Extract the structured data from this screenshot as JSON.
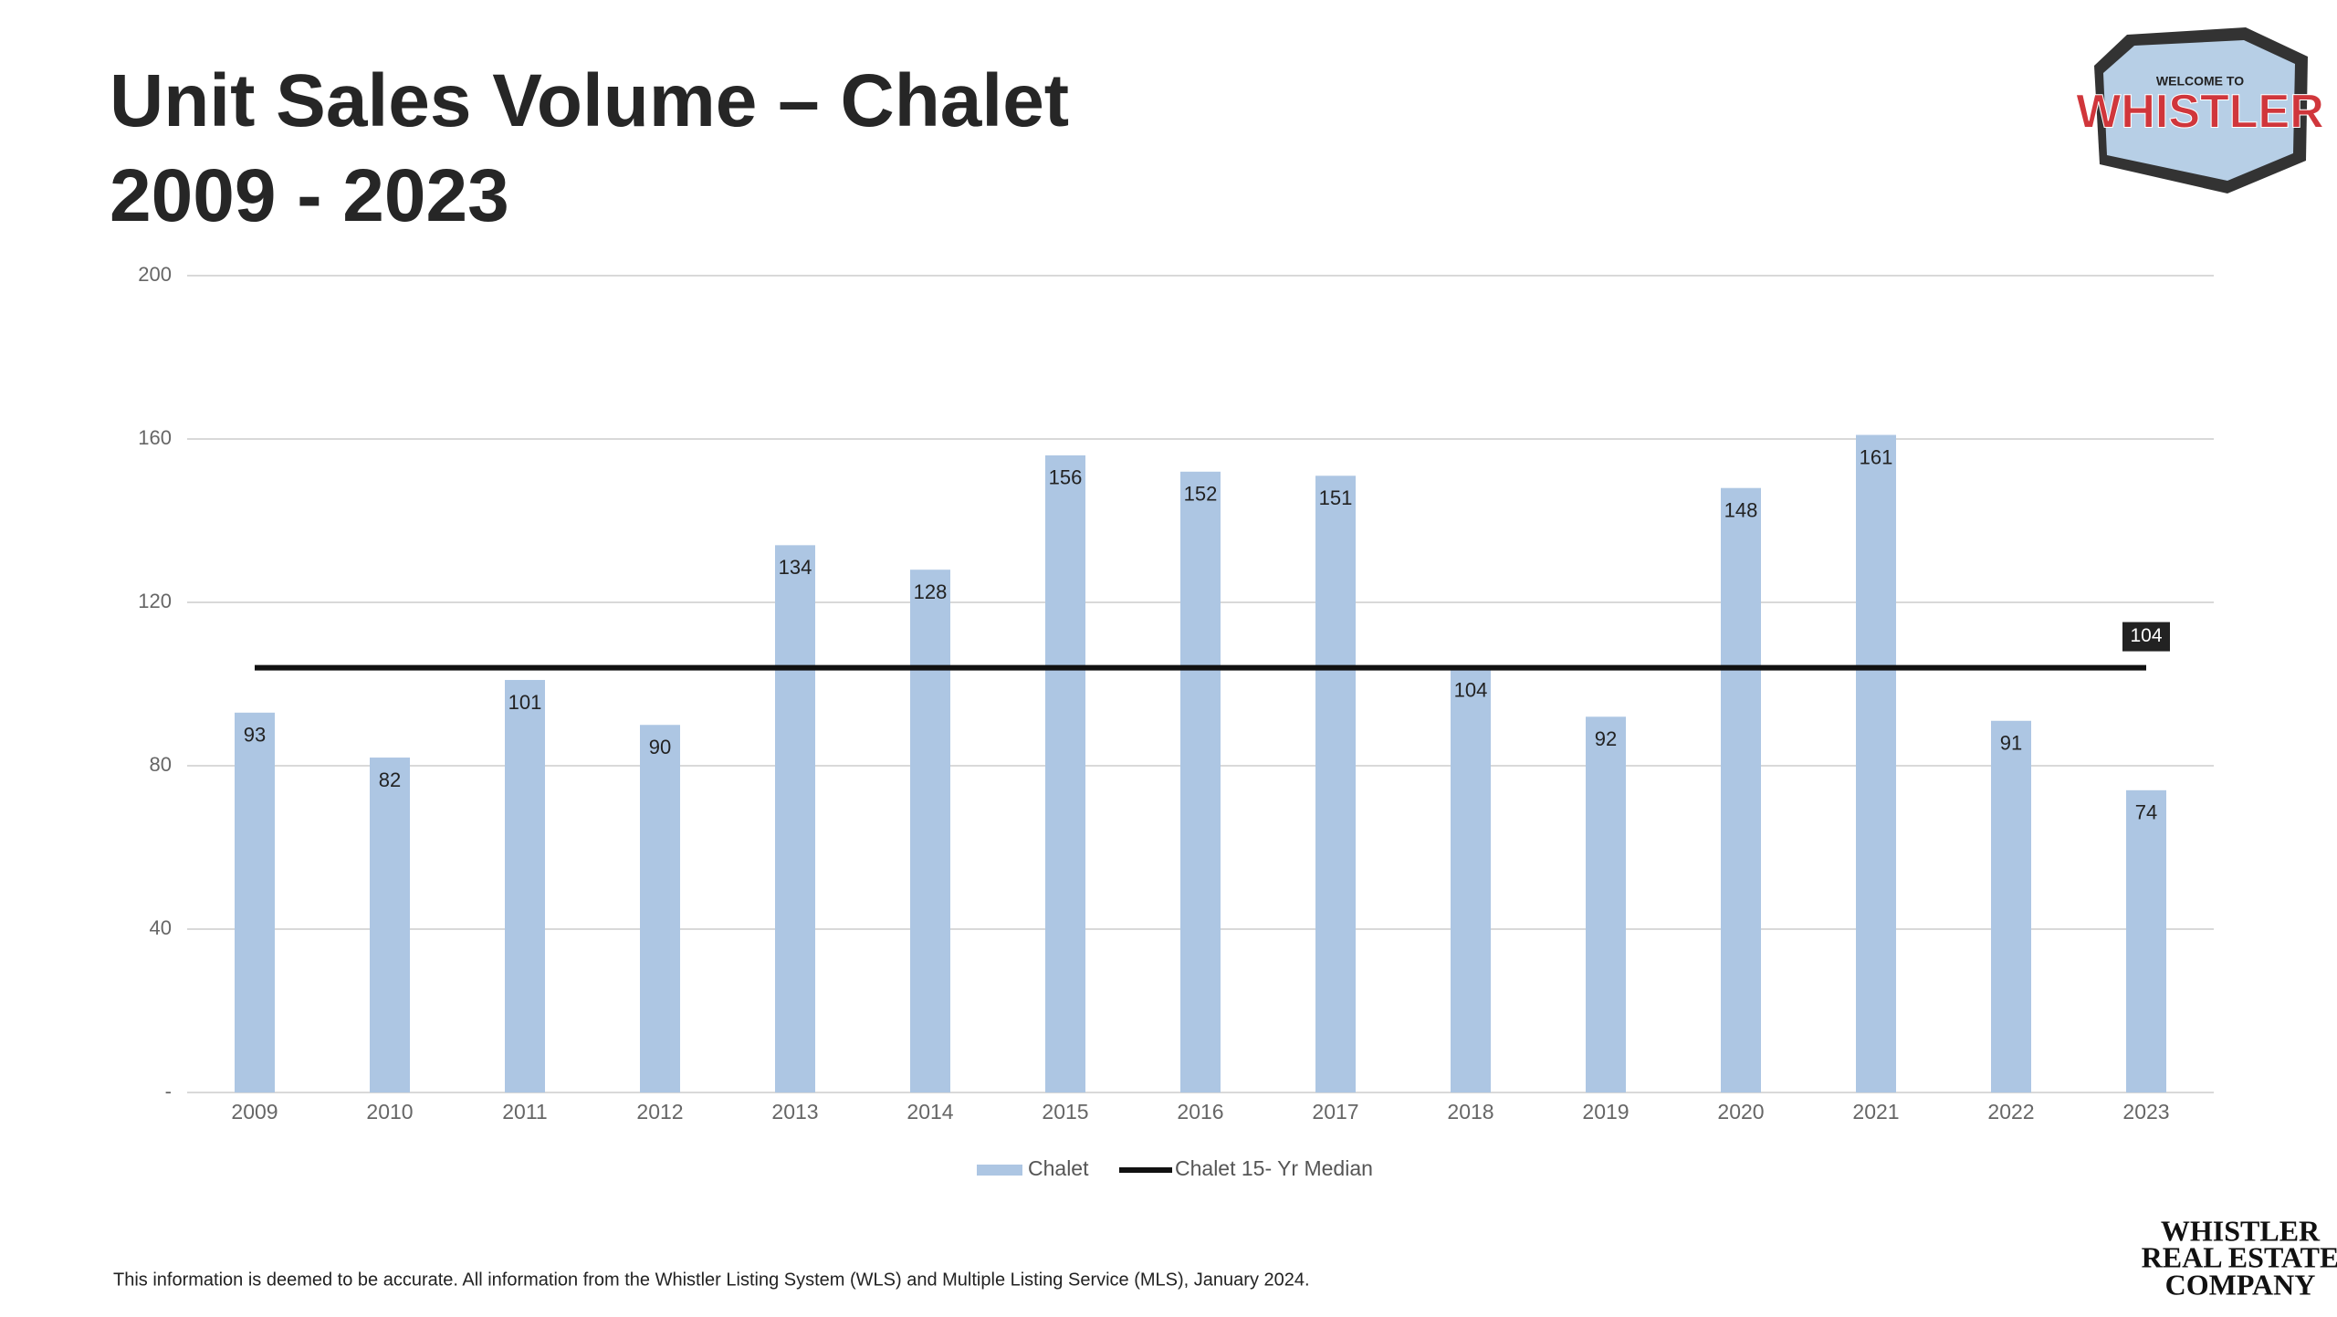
{
  "chart_data": {
    "type": "bar",
    "title": "Unit Sales Volume – Chalet",
    "subtitle": "2009 - 2023",
    "categories": [
      "2009",
      "2010",
      "2011",
      "2012",
      "2013",
      "2014",
      "2015",
      "2016",
      "2017",
      "2018",
      "2019",
      "2020",
      "2021",
      "2022",
      "2023"
    ],
    "series": [
      {
        "name": "Chalet",
        "color": "#adc6e3",
        "values": [
          93,
          82,
          101,
          90,
          134,
          128,
          156,
          152,
          151,
          104,
          92,
          148,
          161,
          91,
          74
        ]
      }
    ],
    "reference_line": {
      "name": "Chalet 15- Yr Median",
      "value": 104,
      "color": "#111111"
    },
    "ylim": [
      0,
      200
    ],
    "yticks": [
      {
        "value": 0,
        "label": "-"
      },
      40,
      80,
      120,
      160,
      200
    ],
    "grid": true,
    "legend": "bottom"
  },
  "logo": {
    "top": "WELCOME TO",
    "main": "WHISTLER"
  },
  "brand": [
    "WHISTLER",
    "REAL ESTATE",
    "COMPANY"
  ],
  "footnote": "This information is deemed to be accurate. All information from the Whistler Listing System (WLS) and Multiple Listing Service (MLS), January 2024."
}
